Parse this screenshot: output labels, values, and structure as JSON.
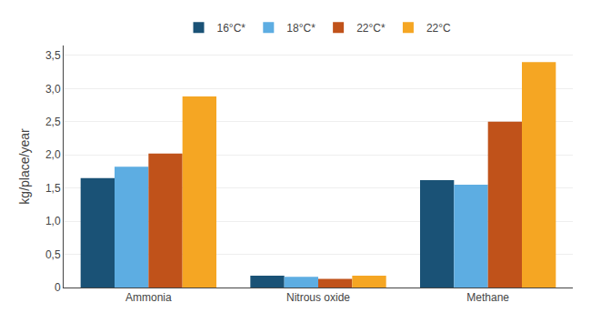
{
  "chart_data": {
    "type": "bar",
    "categories": [
      "Ammonia",
      "Nitrous oxide",
      "Methane"
    ],
    "series": [
      {
        "name": "16°C*",
        "color": "#1a5276",
        "values": [
          1.65,
          0.18,
          1.62
        ]
      },
      {
        "name": "18°C*",
        "color": "#5dade2",
        "values": [
          1.82,
          0.16,
          1.55
        ]
      },
      {
        "name": "22°C*",
        "color": "#c0521a",
        "values": [
          2.02,
          0.13,
          2.5
        ]
      },
      {
        "name": "22°C",
        "color": "#f5a623",
        "values": [
          2.88,
          0.18,
          3.4
        ]
      }
    ],
    "ylabel": "kg/place/year",
    "ylim": [
      0,
      3.65
    ],
    "yticks": [
      0,
      {
        "value": 0.5,
        "label": "0,5"
      },
      {
        "value": 1.0,
        "label": "1,0"
      },
      {
        "value": 1.5,
        "label": "1,5"
      },
      {
        "value": 2.0,
        "label": "2,0"
      },
      {
        "value": 2.5,
        "label": "2,5"
      },
      {
        "value": 3.0,
        "label": "3,0"
      },
      {
        "value": 3.5,
        "label": "3,5"
      }
    ],
    "grid": true,
    "legend": "top"
  }
}
